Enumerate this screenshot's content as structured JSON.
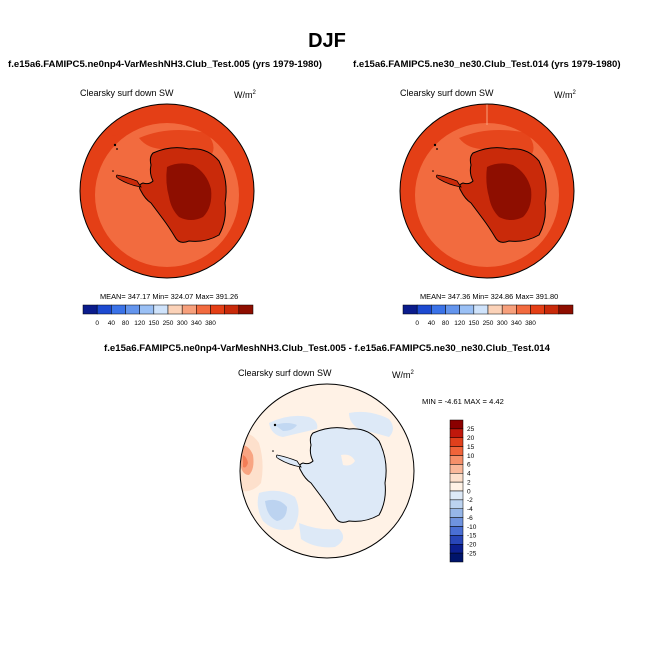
{
  "figure": {
    "title": "DJF",
    "diff_title": "f.e15a6.FAMIPC5.ne0np4-VarMeshNH3.Club_Test.005 - f.e15a6.FAMIPC5.ne30_ne30.Club_Test.014"
  },
  "panels": [
    {
      "case_title": "f.e15a6.FAMIPC5.ne0np4-VarMeshNH3.Club_Test.005 (yrs 1979-1980)",
      "variable": "Clearsky surf down SW",
      "units_base": "W/m",
      "units_exp": "2",
      "stats": "MEAN= 347.17  Min= 324.07  Max= 391.26"
    },
    {
      "case_title": "f.e15a6.FAMIPC5.ne30_ne30.Club_Test.014 (yrs 1979-1980)",
      "variable": "Clearsky surf down SW",
      "units_base": "W/m",
      "units_exp": "2",
      "stats": "MEAN= 347.36  Min= 324.86  Max= 391.80"
    },
    {
      "variable": "Clearsky surf down SW",
      "units_base": "W/m",
      "units_exp": "2",
      "minmax": "MIN =  -4.61 MAX =   4.42"
    }
  ],
  "chart_data": [
    {
      "type": "heatmap",
      "projection": "polar-stereographic (south pole)",
      "title": "f.e15a6.FAMIPC5.ne0np4-VarMeshNH3.Club_Test.005 (yrs 1979-1980)",
      "variable": "Clearsky surf down SW",
      "units": "W/m2",
      "mean": 347.17,
      "min": 324.07,
      "max": 391.26,
      "colorbar_levels": [
        0,
        40,
        80,
        120,
        150,
        250,
        300,
        340,
        380
      ],
      "colorbar_colors": [
        "#0b1c8c",
        "#1d4ad1",
        "#3b73e8",
        "#6495ed",
        "#9ac0f5",
        "#cfe3fb",
        "#fbd2b8",
        "#f7a07c",
        "#f26b3f",
        "#e43f16",
        "#c92a0a",
        "#8e0e00"
      ],
      "colorbar_orientation": "horizontal"
    },
    {
      "type": "heatmap",
      "projection": "polar-stereographic (south pole)",
      "title": "f.e15a6.FAMIPC5.ne30_ne30.Club_Test.014 (yrs 1979-1980)",
      "variable": "Clearsky surf down SW",
      "units": "W/m2",
      "mean": 347.36,
      "min": 324.86,
      "max": 391.8,
      "colorbar_levels": [
        0,
        40,
        80,
        120,
        150,
        250,
        300,
        340,
        380
      ],
      "colorbar_colors": [
        "#0b1c8c",
        "#1d4ad1",
        "#3b73e8",
        "#6495ed",
        "#9ac0f5",
        "#cfe3fb",
        "#fbd2b8",
        "#f7a07c",
        "#f26b3f",
        "#e43f16",
        "#c92a0a",
        "#8e0e00"
      ],
      "colorbar_orientation": "horizontal"
    },
    {
      "type": "heatmap",
      "projection": "polar-stereographic (south pole)",
      "title": "f.e15a6.FAMIPC5.ne0np4-VarMeshNH3.Club_Test.005 - f.e15a6.FAMIPC5.ne30_ne30.Club_Test.014",
      "variable": "Clearsky surf down SW",
      "units": "W/m2",
      "min": -4.61,
      "max": 4.42,
      "colorbar_levels": [
        "25",
        "20",
        "15",
        "10",
        "6",
        "4",
        "2",
        "0",
        "-2",
        "-4",
        "-6",
        "-10",
        "-15",
        "-20",
        "-25"
      ],
      "colorbar_colors": [
        "#8b0000",
        "#c0180c",
        "#e0401c",
        "#f0643a",
        "#f6906a",
        "#fab89a",
        "#fde0cc",
        "#fff2e6",
        "#dde9f7",
        "#bcd3f0",
        "#96b6e8",
        "#6f93df",
        "#4a6fd4",
        "#2846b8",
        "#0c1f8f",
        "#00146b"
      ],
      "colorbar_orientation": "vertical"
    }
  ],
  "colors": {
    "ocean_mid": "#f26b3f",
    "ocean_far": "#e43f16",
    "land": "#c92a0a",
    "plateau": "#8e0e00",
    "diff_background": "#fff2e6",
    "diff_negative": "#dde9f7",
    "diff_negative_strong": "#bcd3f0",
    "diff_positive": "#fde0cc",
    "diff_positive_strong": "#f6906a"
  }
}
